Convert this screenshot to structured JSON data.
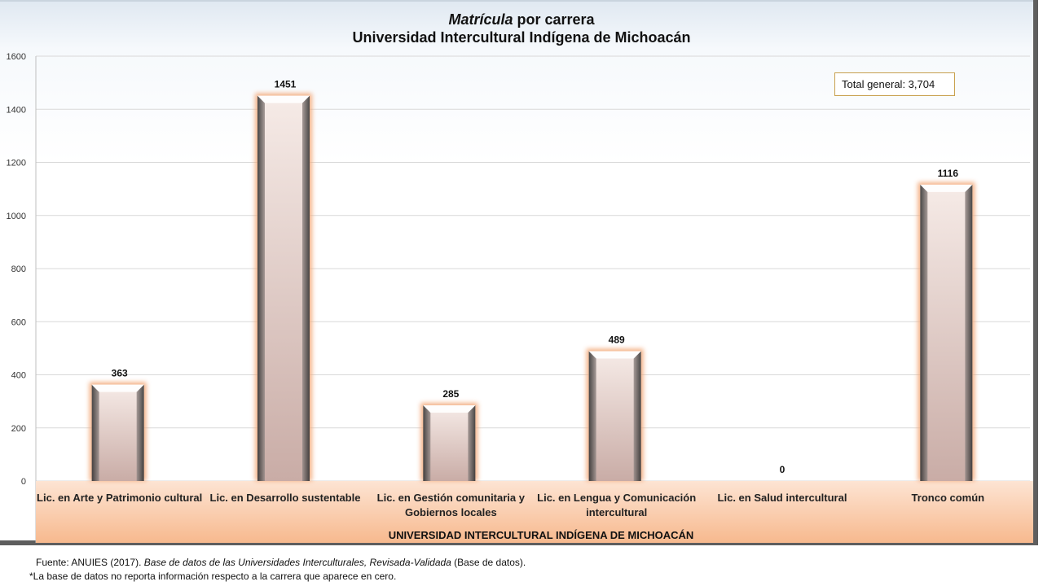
{
  "title": {
    "italic_part": "Matrícula",
    "rest": " por carrera",
    "line2": "Universidad Intercultural Indígena de Michoacán"
  },
  "total_label": "Total general: 3,704",
  "axis_band_label": "UNIVERSIDAD INTERCULTURAL INDÍGENA DE MICHOACÁN",
  "source": {
    "prefix": "Fuente: ANUIES (2017). ",
    "italic": "Base de datos de las Universidades Interculturales, Revisada-Validada",
    "suffix": " (Base de datos)."
  },
  "footnote": "*La base de datos no reporta información respecto a la carrera que aparece en cero.",
  "colors": {
    "bar_face_top": "#f6ebe7",
    "bar_face_bottom": "#c9aca6",
    "bar_glow": "#f2a472",
    "band_top": "#fde4d3",
    "band_bottom": "#f7b98e",
    "gridline": "#d9d9d9"
  },
  "chart_data": {
    "type": "bar",
    "categories": [
      [
        "Lic. en Arte y Patrimonio cultural"
      ],
      [
        "Lic. en Desarrollo sustentable"
      ],
      [
        "Lic. en Gestión comunitaria y",
        "Gobiernos locales"
      ],
      [
        "Lic. en Lengua y Comunicación",
        "intercultural"
      ],
      [
        "Lic. en Salud intercultural"
      ],
      [
        "Tronco común"
      ]
    ],
    "values": [
      363,
      1451,
      285,
      489,
      0,
      1116
    ],
    "ylim": [
      0,
      1600
    ],
    "yticks": [
      0,
      200,
      400,
      600,
      800,
      1000,
      1200,
      1400,
      1600
    ],
    "grid": true,
    "xlabel": "UNIVERSIDAD INTERCULTURAL INDÍGENA DE MICHOACÁN"
  }
}
